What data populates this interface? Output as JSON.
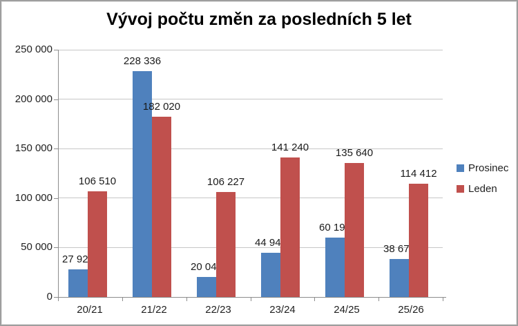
{
  "title": "Vývoj počtu změn za posledních 5 let",
  "chart_data": {
    "type": "bar",
    "title": "Vývoj počtu změn za posledních 5 let",
    "categories": [
      "20/21",
      "21/22",
      "22/23",
      "23/24",
      "24/25",
      "25/26"
    ],
    "series": [
      {
        "name": "Prosinec",
        "color": "#4F81BD",
        "values": [
          27926,
          228336,
          20045,
          44944,
          60193,
          38678
        ],
        "labels": [
          "27 926",
          "228 336",
          "20 045",
          "44 944",
          "60 193",
          "38 678"
        ]
      },
      {
        "name": "Leden",
        "color": "#C0504D",
        "values": [
          106510,
          182020,
          106227,
          141240,
          135640,
          114412
        ],
        "labels": [
          "106 510",
          "182 020",
          "106 227",
          "141 240",
          "135 640",
          "114 412"
        ]
      }
    ],
    "xlabel": "",
    "ylabel": "",
    "ylim": [
      0,
      250000
    ],
    "yticks": {
      "values": [
        0,
        50000,
        100000,
        150000,
        200000,
        250000
      ],
      "labels": [
        "0",
        "50 000",
        "100 000",
        "150 000",
        "200 000",
        "250 000"
      ]
    },
    "grid": "horizontal",
    "legend_position": "right",
    "data_labels": "above-bars"
  },
  "colors": {
    "grid": "#c6c6c6",
    "axis": "#8c8c8c",
    "border": "#9e9e9e",
    "label_text": "#1f1f1f"
  }
}
